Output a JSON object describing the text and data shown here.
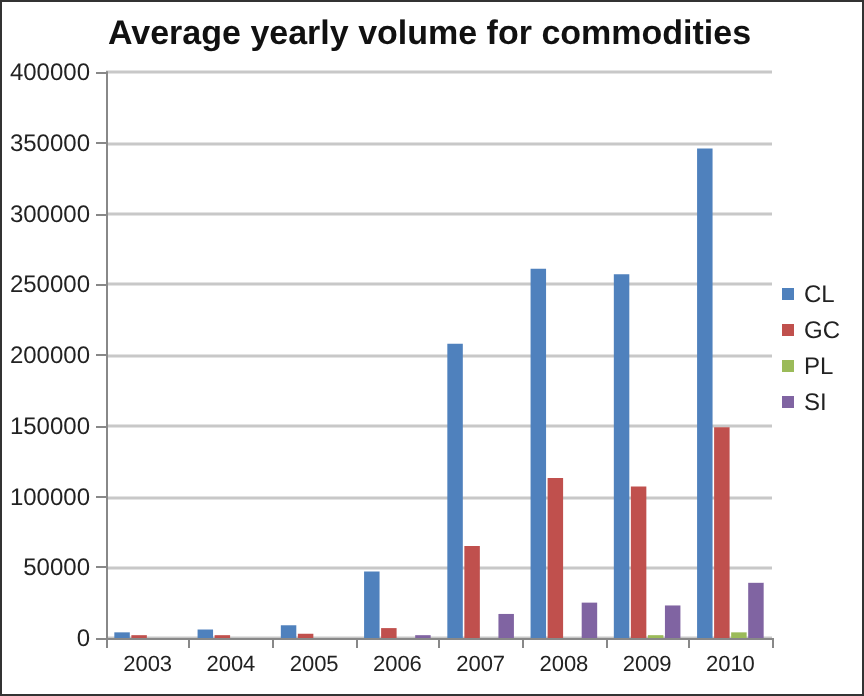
{
  "chart_data": {
    "type": "bar",
    "title": "Average yearly volume for commodities",
    "categories": [
      "2003",
      "2004",
      "2005",
      "2006",
      "2007",
      "2008",
      "2009",
      "2010"
    ],
    "series": [
      {
        "name": "CL",
        "color": "#4f81bd",
        "values": [
          4000,
          6000,
          9000,
          47000,
          208000,
          261000,
          257000,
          346000
        ]
      },
      {
        "name": "GC",
        "color": "#c0504d",
        "values": [
          2000,
          2000,
          3000,
          7000,
          65000,
          113000,
          107000,
          149000
        ]
      },
      {
        "name": "PL",
        "color": "#9bbb59",
        "values": [
          0,
          0,
          0,
          0,
          0,
          0,
          2000,
          4000
        ]
      },
      {
        "name": "SI",
        "color": "#8064a2",
        "values": [
          0,
          null,
          null,
          2000,
          17000,
          25000,
          23000,
          39000
        ]
      }
    ],
    "ylim": [
      0,
      400000
    ],
    "yticks": [
      0,
      50000,
      100000,
      150000,
      200000,
      250000,
      300000,
      350000,
      400000
    ],
    "grid": "y",
    "legend": "right"
  }
}
